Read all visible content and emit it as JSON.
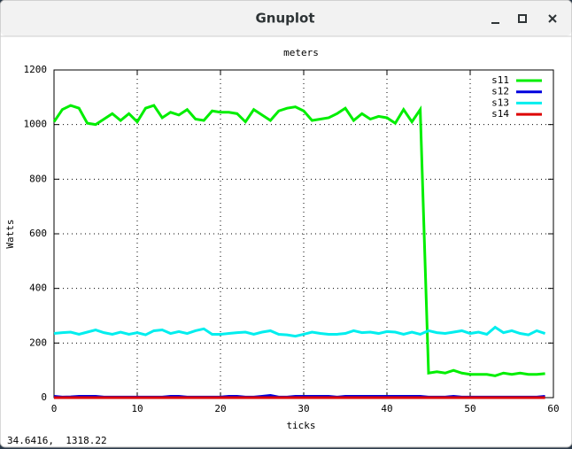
{
  "window": {
    "title": "Gnuplot",
    "status": "34.6416,  1318.22"
  },
  "chart_data": {
    "type": "line",
    "title": "meters",
    "xlabel": "ticks",
    "ylabel": "Watts",
    "x": [
      0,
      1,
      2,
      3,
      4,
      5,
      6,
      7,
      8,
      9,
      10,
      11,
      12,
      13,
      14,
      15,
      16,
      17,
      18,
      19,
      20,
      21,
      22,
      23,
      24,
      25,
      26,
      27,
      28,
      29,
      30,
      31,
      32,
      33,
      34,
      35,
      36,
      37,
      38,
      39,
      40,
      41,
      42,
      43,
      44,
      45,
      46,
      47,
      48,
      49,
      50,
      51,
      52,
      53,
      54,
      55,
      56,
      57,
      58,
      59
    ],
    "series": [
      {
        "name": "s11",
        "color": "#00ee00",
        "values": [
          1010,
          1055,
          1070,
          1060,
          1005,
          1000,
          1020,
          1040,
          1015,
          1040,
          1010,
          1060,
          1070,
          1025,
          1045,
          1035,
          1055,
          1020,
          1015,
          1050,
          1045,
          1045,
          1040,
          1010,
          1055,
          1035,
          1015,
          1050,
          1060,
          1065,
          1050,
          1015,
          1020,
          1025,
          1040,
          1060,
          1015,
          1040,
          1020,
          1030,
          1025,
          1005,
          1055,
          1010,
          1055,
          90,
          95,
          90,
          100,
          90,
          85,
          85,
          85,
          80,
          90,
          85,
          90,
          85,
          85,
          88
        ]
      },
      {
        "name": "s12",
        "color": "#0000dd",
        "values": [
          5,
          2,
          3,
          5,
          5,
          5,
          2,
          2,
          2,
          2,
          2,
          2,
          2,
          2,
          5,
          5,
          2,
          2,
          2,
          2,
          2,
          5,
          5,
          2,
          2,
          5,
          8,
          2,
          2,
          5,
          5,
          5,
          5,
          5,
          2,
          5,
          5,
          5,
          5,
          5,
          5,
          5,
          5,
          5,
          5,
          2,
          2,
          2,
          5,
          2,
          2,
          2,
          2,
          2,
          2,
          2,
          2,
          2,
          2,
          5
        ]
      },
      {
        "name": "s13",
        "color": "#00eeee",
        "values": [
          235,
          238,
          240,
          232,
          240,
          248,
          238,
          232,
          240,
          232,
          238,
          230,
          245,
          248,
          235,
          242,
          235,
          245,
          252,
          232,
          232,
          235,
          238,
          240,
          232,
          240,
          245,
          232,
          230,
          225,
          232,
          240,
          235,
          232,
          232,
          235,
          245,
          238,
          240,
          235,
          242,
          240,
          232,
          240,
          232,
          245,
          238,
          235,
          240,
          245,
          235,
          240,
          232,
          258,
          238,
          245,
          235,
          230,
          245,
          235
        ]
      },
      {
        "name": "s14",
        "color": "#dd0000",
        "values": [
          0,
          0,
          0,
          0,
          0,
          0,
          0,
          0,
          0,
          0,
          0,
          0,
          0,
          0,
          0,
          0,
          0,
          0,
          0,
          0,
          0,
          0,
          0,
          0,
          0,
          0,
          0,
          0,
          0,
          0,
          0,
          0,
          0,
          0,
          0,
          0,
          0,
          0,
          0,
          0,
          0,
          0,
          0,
          0,
          0,
          0,
          0,
          0,
          0,
          0,
          0,
          0,
          0,
          0,
          0,
          0,
          0,
          0,
          0,
          0
        ]
      }
    ],
    "xlim": [
      0,
      60
    ],
    "xticks": [
      0,
      10,
      20,
      30,
      40,
      50,
      60
    ],
    "ylim": [
      0,
      1200
    ],
    "yticks": [
      0,
      200,
      400,
      600,
      800,
      1000,
      1200
    ],
    "grid": true,
    "legend": "top-right"
  }
}
